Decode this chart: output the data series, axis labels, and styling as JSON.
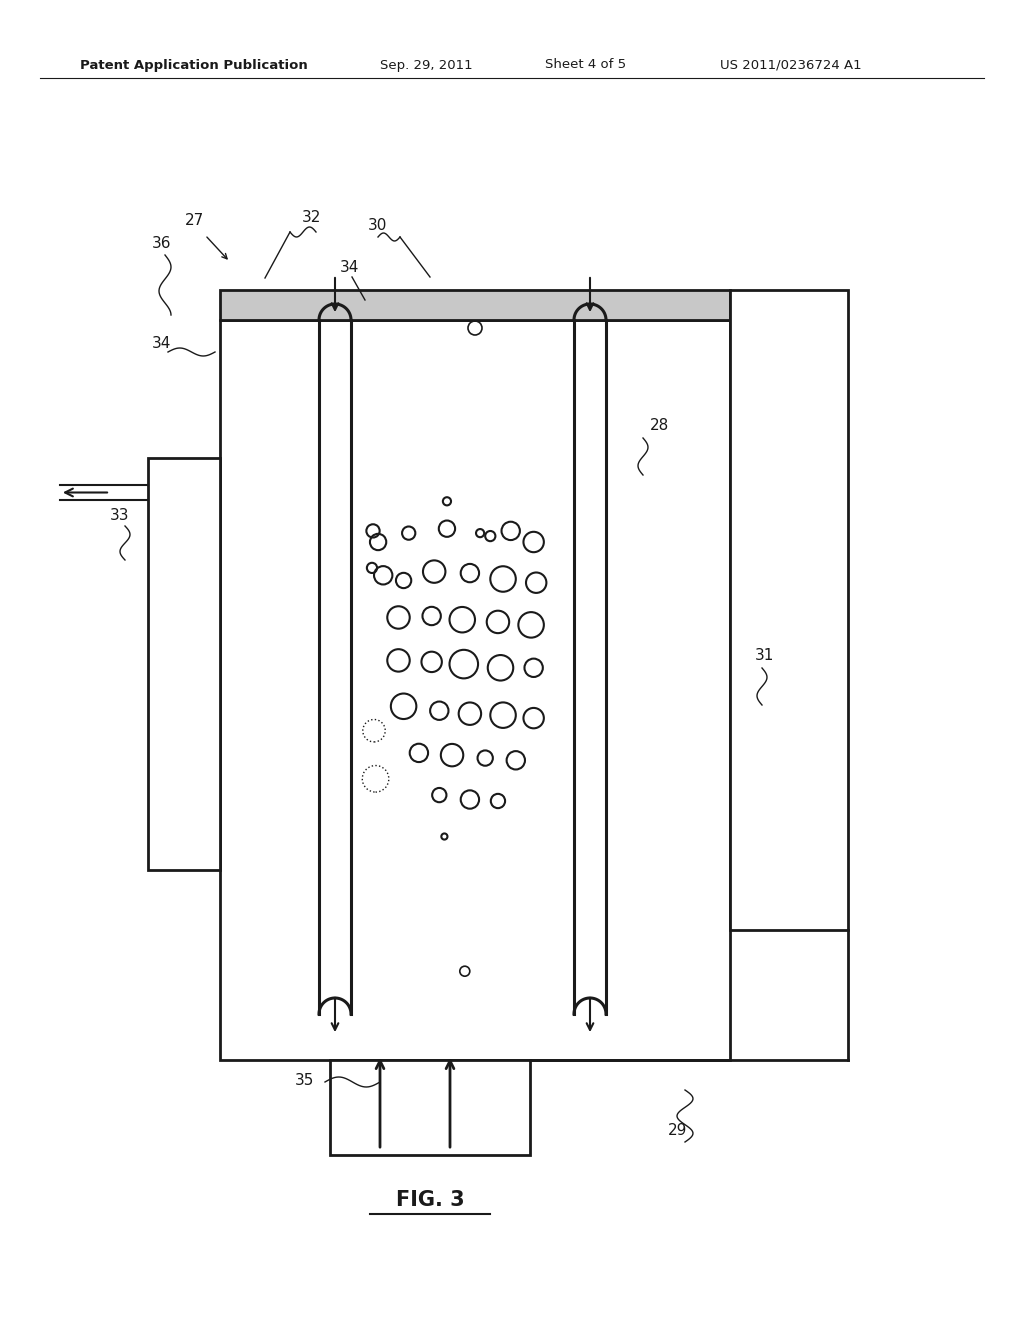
{
  "bg_color": "#ffffff",
  "lc": "#1a1a1a",
  "header_left": "Patent Application Publication",
  "header_mid1": "Sep. 29, 2011",
  "header_mid2": "Sheet 4 of 5",
  "header_right": "US 2011/0236724 A1",
  "fig_label": "FIG. 3",
  "bubbles": [
    [
      0.445,
      0.755,
      0.008,
      false
    ],
    [
      0.31,
      0.7,
      0.016,
      false
    ],
    [
      0.37,
      0.712,
      0.013,
      false
    ],
    [
      0.445,
      0.718,
      0.016,
      false
    ],
    [
      0.51,
      0.712,
      0.008,
      false
    ],
    [
      0.53,
      0.708,
      0.01,
      false
    ],
    [
      0.57,
      0.715,
      0.018,
      false
    ],
    [
      0.615,
      0.7,
      0.02,
      false
    ],
    [
      0.32,
      0.655,
      0.018,
      false
    ],
    [
      0.36,
      0.648,
      0.015,
      false
    ],
    [
      0.42,
      0.66,
      0.022,
      false
    ],
    [
      0.49,
      0.658,
      0.018,
      false
    ],
    [
      0.555,
      0.65,
      0.025,
      false
    ],
    [
      0.62,
      0.645,
      0.02,
      false
    ],
    [
      0.35,
      0.598,
      0.022,
      false
    ],
    [
      0.415,
      0.6,
      0.018,
      false
    ],
    [
      0.475,
      0.595,
      0.025,
      false
    ],
    [
      0.545,
      0.592,
      0.022,
      false
    ],
    [
      0.61,
      0.588,
      0.025,
      false
    ],
    [
      0.35,
      0.54,
      0.022,
      false
    ],
    [
      0.415,
      0.538,
      0.02,
      false
    ],
    [
      0.478,
      0.535,
      0.028,
      false
    ],
    [
      0.55,
      0.53,
      0.025,
      false
    ],
    [
      0.615,
      0.53,
      0.018,
      false
    ],
    [
      0.36,
      0.478,
      0.025,
      false
    ],
    [
      0.43,
      0.472,
      0.018,
      false
    ],
    [
      0.49,
      0.468,
      0.022,
      false
    ],
    [
      0.555,
      0.466,
      0.025,
      false
    ],
    [
      0.615,
      0.462,
      0.02,
      false
    ],
    [
      0.39,
      0.415,
      0.018,
      false
    ],
    [
      0.455,
      0.412,
      0.022,
      false
    ],
    [
      0.52,
      0.408,
      0.015,
      false
    ],
    [
      0.58,
      0.405,
      0.018,
      false
    ],
    [
      0.43,
      0.358,
      0.014,
      false
    ],
    [
      0.49,
      0.352,
      0.018,
      false
    ],
    [
      0.545,
      0.35,
      0.014,
      false
    ],
    [
      0.44,
      0.302,
      0.006,
      false
    ],
    [
      0.3,
      0.715,
      0.013,
      false
    ],
    [
      0.298,
      0.665,
      0.01,
      false
    ],
    [
      0.302,
      0.445,
      0.022,
      true
    ],
    [
      0.305,
      0.38,
      0.026,
      true
    ]
  ]
}
